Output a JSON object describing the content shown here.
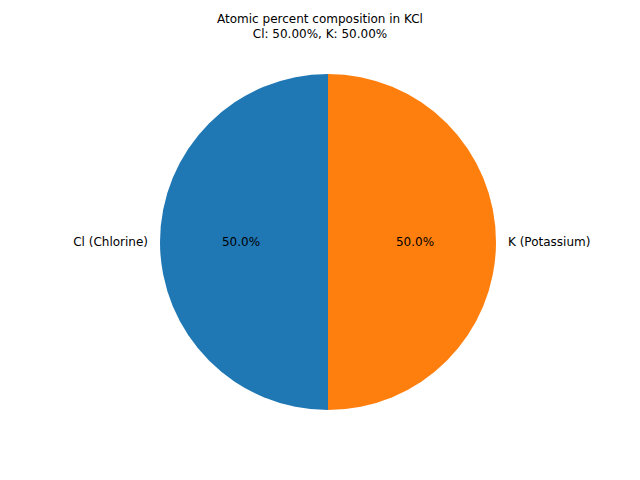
{
  "chart_data": {
    "type": "pie",
    "title": "Atomic percent composition in KCl",
    "subtitle": "Cl: 50.00%, K: 50.00%",
    "categories": [
      "Cl (Chlorine)",
      "K (Potassium)"
    ],
    "values": [
      50,
      50
    ],
    "value_labels": [
      "50.0%",
      "50.0%"
    ],
    "colors": [
      "#1f77b4",
      "#ff7f0e"
    ],
    "data_labels": true
  }
}
